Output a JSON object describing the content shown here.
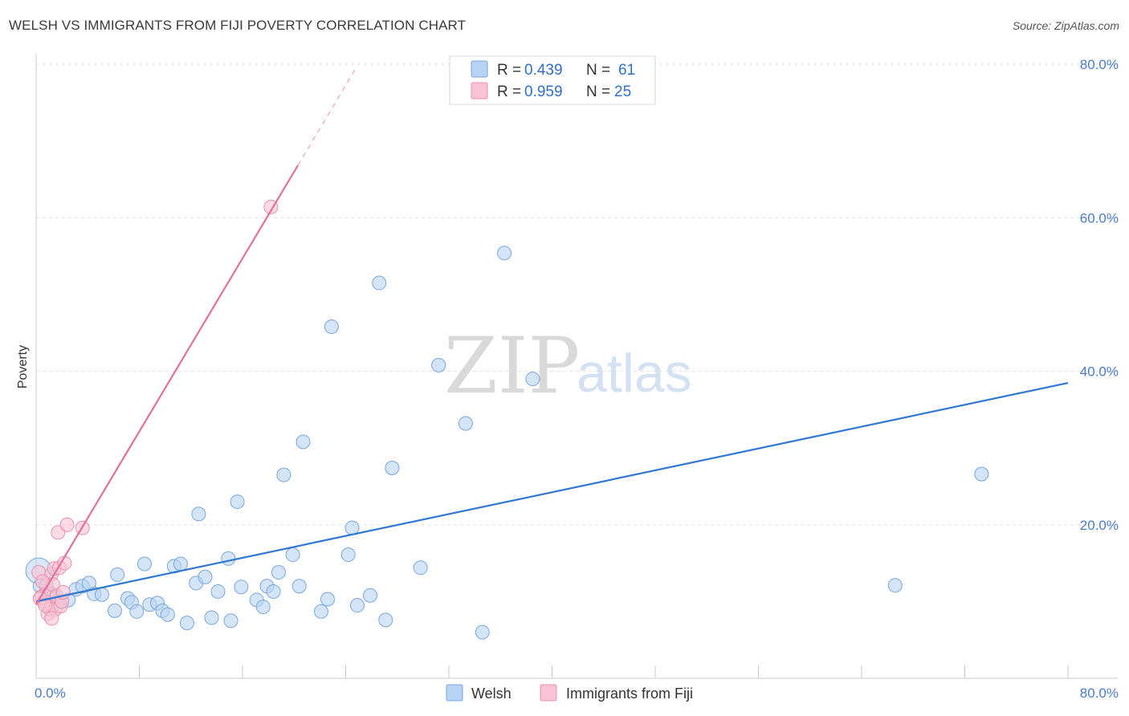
{
  "title": "WELSH VS IMMIGRANTS FROM FIJI POVERTY CORRELATION CHART",
  "source": "Source: ZipAtlas.com",
  "colors": {
    "welsh_fill": "#b8d3f3",
    "welsh_stroke": "#7aa6e0",
    "welsh_line": "#2f77d0",
    "fiji_fill": "#f8c3d4",
    "fiji_stroke": "#ec8fac",
    "fiji_line": "#e4709a",
    "value_text": "#2f6fcc",
    "grid": "#e3e3e3"
  },
  "chart_data": {
    "type": "scatter",
    "title": "WELSH VS IMMIGRANTS FROM FIJI POVERTY CORRELATION CHART",
    "xlabel": "",
    "ylabel": "Poverty",
    "xlim": [
      0,
      80
    ],
    "ylim": [
      0,
      80
    ],
    "x_tick_labels": [
      "0.0%",
      "80.0%"
    ],
    "y_tick_labels": [
      {
        "value": 20,
        "label": "20.0%"
      },
      {
        "value": 40,
        "label": "40.0%"
      },
      {
        "value": 60,
        "label": "60.0%"
      },
      {
        "value": 80,
        "label": "80.0%"
      }
    ],
    "legend": [
      {
        "series": "Welsh",
        "r_label": "R =",
        "r_value": "0.439",
        "n_label": "N =",
        "n_value": "61"
      },
      {
        "series": "Immigrants from Fiji",
        "r_label": "R =",
        "r_value": "0.959",
        "n_label": "N =",
        "n_value": "25"
      }
    ],
    "series": [
      {
        "name": "Welsh",
        "trend": {
          "slope": 0.356,
          "intercept": 10.0,
          "x_start": 0.0,
          "x_end": 80.0
        },
        "points": [
          [
            0.2,
            14.0
          ],
          [
            0.8,
            11.5
          ],
          [
            1.2,
            11.0
          ],
          [
            1.5,
            10.5
          ],
          [
            2.0,
            10.0
          ],
          [
            2.5,
            10.2
          ],
          [
            3.1,
            11.6
          ],
          [
            3.6,
            12.0
          ],
          [
            4.1,
            12.4
          ],
          [
            4.5,
            11.0
          ],
          [
            5.1,
            10.9
          ],
          [
            6.1,
            8.8
          ],
          [
            6.3,
            13.5
          ],
          [
            7.1,
            10.4
          ],
          [
            7.4,
            9.9
          ],
          [
            7.8,
            8.7
          ],
          [
            8.4,
            14.9
          ],
          [
            8.8,
            9.6
          ],
          [
            9.4,
            9.8
          ],
          [
            9.8,
            8.8
          ],
          [
            10.2,
            8.3
          ],
          [
            10.7,
            14.6
          ],
          [
            11.2,
            14.9
          ],
          [
            11.7,
            7.2
          ],
          [
            12.4,
            12.4
          ],
          [
            12.6,
            21.4
          ],
          [
            13.1,
            13.2
          ],
          [
            13.6,
            7.9
          ],
          [
            14.1,
            11.3
          ],
          [
            14.9,
            15.6
          ],
          [
            15.1,
            7.5
          ],
          [
            15.6,
            23.0
          ],
          [
            15.9,
            11.9
          ],
          [
            17.1,
            10.2
          ],
          [
            17.6,
            9.3
          ],
          [
            17.9,
            12.0
          ],
          [
            18.4,
            11.3
          ],
          [
            18.8,
            13.8
          ],
          [
            19.2,
            26.5
          ],
          [
            19.9,
            16.1
          ],
          [
            20.4,
            12.0
          ],
          [
            20.7,
            30.8
          ],
          [
            22.1,
            8.7
          ],
          [
            22.6,
            10.3
          ],
          [
            22.9,
            45.8
          ],
          [
            24.2,
            16.1
          ],
          [
            24.5,
            19.6
          ],
          [
            24.9,
            9.5
          ],
          [
            25.9,
            10.8
          ],
          [
            26.6,
            51.5
          ],
          [
            27.1,
            7.6
          ],
          [
            27.6,
            27.4
          ],
          [
            29.8,
            14.4
          ],
          [
            31.2,
            40.8
          ],
          [
            33.3,
            33.2
          ],
          [
            34.6,
            6.0
          ],
          [
            36.3,
            55.4
          ],
          [
            38.5,
            39.0
          ],
          [
            66.6,
            12.1
          ],
          [
            73.3,
            26.6
          ],
          [
            0.3,
            12.0
          ]
        ]
      },
      {
        "name": "Immigrants from Fiji",
        "trend": {
          "slope": 2.819,
          "intercept": 9.6,
          "x_start": 0.0,
          "x_end": 20.3,
          "dash_end_x": 24.8
        },
        "points": [
          [
            0.2,
            13.8
          ],
          [
            0.4,
            10.6
          ],
          [
            0.6,
            10.0
          ],
          [
            0.8,
            12.1
          ],
          [
            0.9,
            8.4
          ],
          [
            1.0,
            11.0
          ],
          [
            1.1,
            9.0
          ],
          [
            1.2,
            13.6
          ],
          [
            1.3,
            12.2
          ],
          [
            1.4,
            14.3
          ],
          [
            1.5,
            9.0
          ],
          [
            1.6,
            10.7
          ],
          [
            1.7,
            19.0
          ],
          [
            1.8,
            14.4
          ],
          [
            1.9,
            9.4
          ],
          [
            2.0,
            10.0
          ],
          [
            2.1,
            11.2
          ],
          [
            2.2,
            15.0
          ],
          [
            0.3,
            10.4
          ],
          [
            0.7,
            9.5
          ],
          [
            2.4,
            20.0
          ],
          [
            3.6,
            19.6
          ],
          [
            0.5,
            12.6
          ],
          [
            1.2,
            7.8
          ],
          [
            18.2,
            61.4
          ]
        ]
      }
    ],
    "watermark": {
      "part1": "ZIP",
      "part2": "atlas"
    }
  },
  "bottom_legend": [
    {
      "label": "Welsh"
    },
    {
      "label": "Immigrants from Fiji"
    }
  ]
}
